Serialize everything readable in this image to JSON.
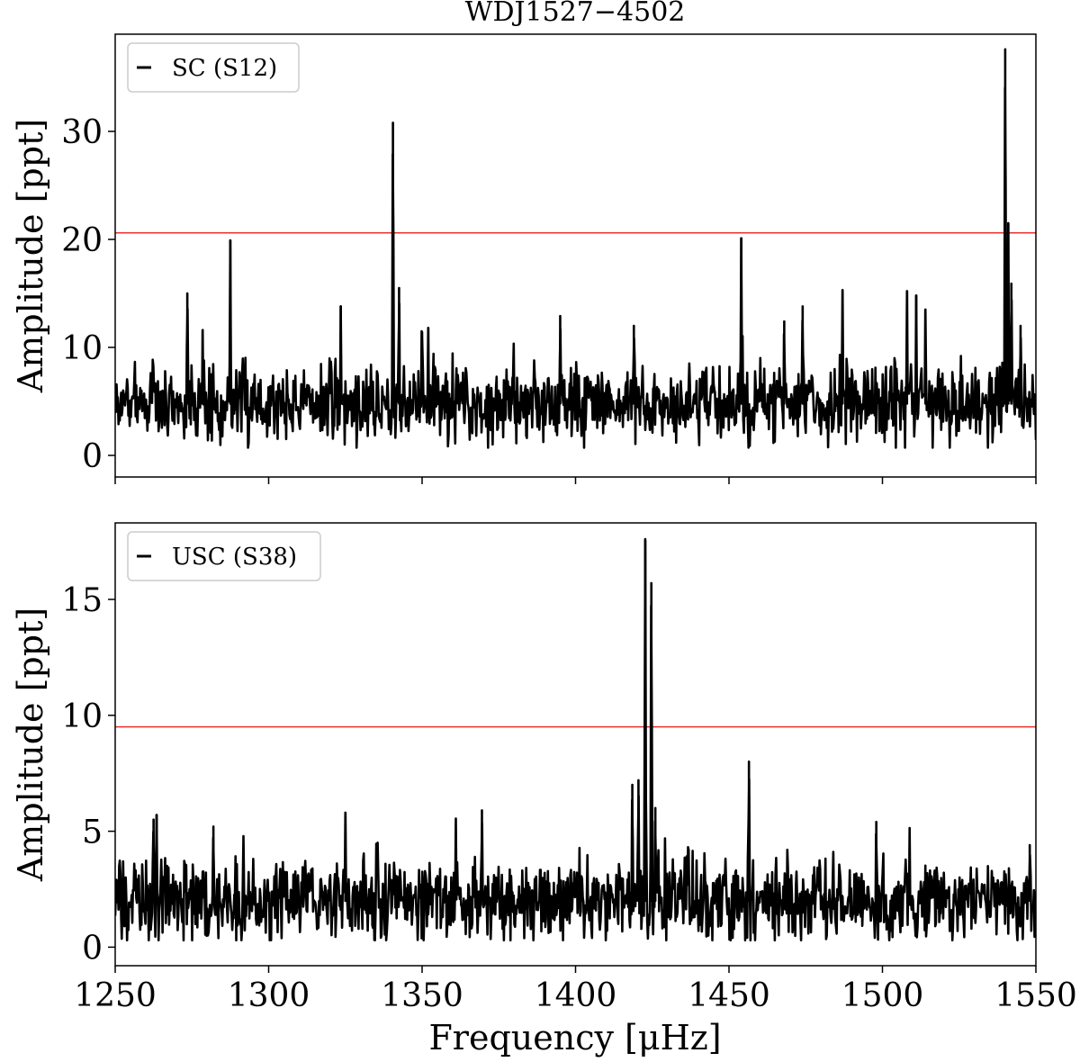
{
  "chart_data": {
    "type": "line",
    "title": "WDJ1527−4502",
    "xlabel": "Frequency [μHz]",
    "xlim": [
      1250,
      1550
    ],
    "xticks": [
      1250,
      1300,
      1350,
      1400,
      1450,
      1500,
      1550
    ],
    "line_color": "#000000",
    "threshold_color": "#e8312c",
    "panels": [
      {
        "ylabel": "Amplitude [ppt]",
        "ylim": [
          -2,
          39
        ],
        "yticks": [
          0,
          10,
          20,
          30
        ],
        "legend": "SC (S12)",
        "legend_position": "top-left",
        "threshold": 20.6,
        "noise_base": 4.8,
        "noise_spread": 2.6,
        "peaks": [
          {
            "x": 1273.5,
            "y": 15.0
          },
          {
            "x": 1278.5,
            "y": 11.6
          },
          {
            "x": 1287.5,
            "y": 19.9
          },
          {
            "x": 1323.5,
            "y": 13.8
          },
          {
            "x": 1340.5,
            "y": 30.8
          },
          {
            "x": 1342.5,
            "y": 15.5
          },
          {
            "x": 1350.0,
            "y": 11.4
          },
          {
            "x": 1352.0,
            "y": 11.8
          },
          {
            "x": 1395.0,
            "y": 12.9
          },
          {
            "x": 1419.0,
            "y": 12.0
          },
          {
            "x": 1454.0,
            "y": 20.1
          },
          {
            "x": 1468.0,
            "y": 12.4
          },
          {
            "x": 1474.0,
            "y": 13.8
          },
          {
            "x": 1487.0,
            "y": 15.3
          },
          {
            "x": 1508.0,
            "y": 15.2
          },
          {
            "x": 1511.0,
            "y": 14.8
          },
          {
            "x": 1514.0,
            "y": 13.5
          },
          {
            "x": 1540.0,
            "y": 37.6
          },
          {
            "x": 1541.0,
            "y": 21.5
          },
          {
            "x": 1542.0,
            "y": 15.9
          },
          {
            "x": 1545.0,
            "y": 12.0
          }
        ]
      },
      {
        "ylabel": "Amplitude [ppt]",
        "ylim": [
          -0.8,
          18.3
        ],
        "yticks": [
          0,
          5,
          10,
          15
        ],
        "legend": "USC (S38)",
        "legend_position": "top-left",
        "threshold": 9.5,
        "noise_base": 2.0,
        "noise_spread": 1.3,
        "peaks": [
          {
            "x": 1262.5,
            "y": 5.5
          },
          {
            "x": 1263.5,
            "y": 5.7
          },
          {
            "x": 1282.0,
            "y": 5.2
          },
          {
            "x": 1325.0,
            "y": 5.8
          },
          {
            "x": 1369.5,
            "y": 5.9
          },
          {
            "x": 1418.5,
            "y": 7.0
          },
          {
            "x": 1420.5,
            "y": 7.2
          },
          {
            "x": 1422.7,
            "y": 17.6
          },
          {
            "x": 1424.7,
            "y": 15.7
          },
          {
            "x": 1426.0,
            "y": 6.0
          },
          {
            "x": 1456.5,
            "y": 8.0
          },
          {
            "x": 1498.0,
            "y": 5.4
          },
          {
            "x": 1548.0,
            "y": 4.4
          }
        ]
      }
    ]
  }
}
